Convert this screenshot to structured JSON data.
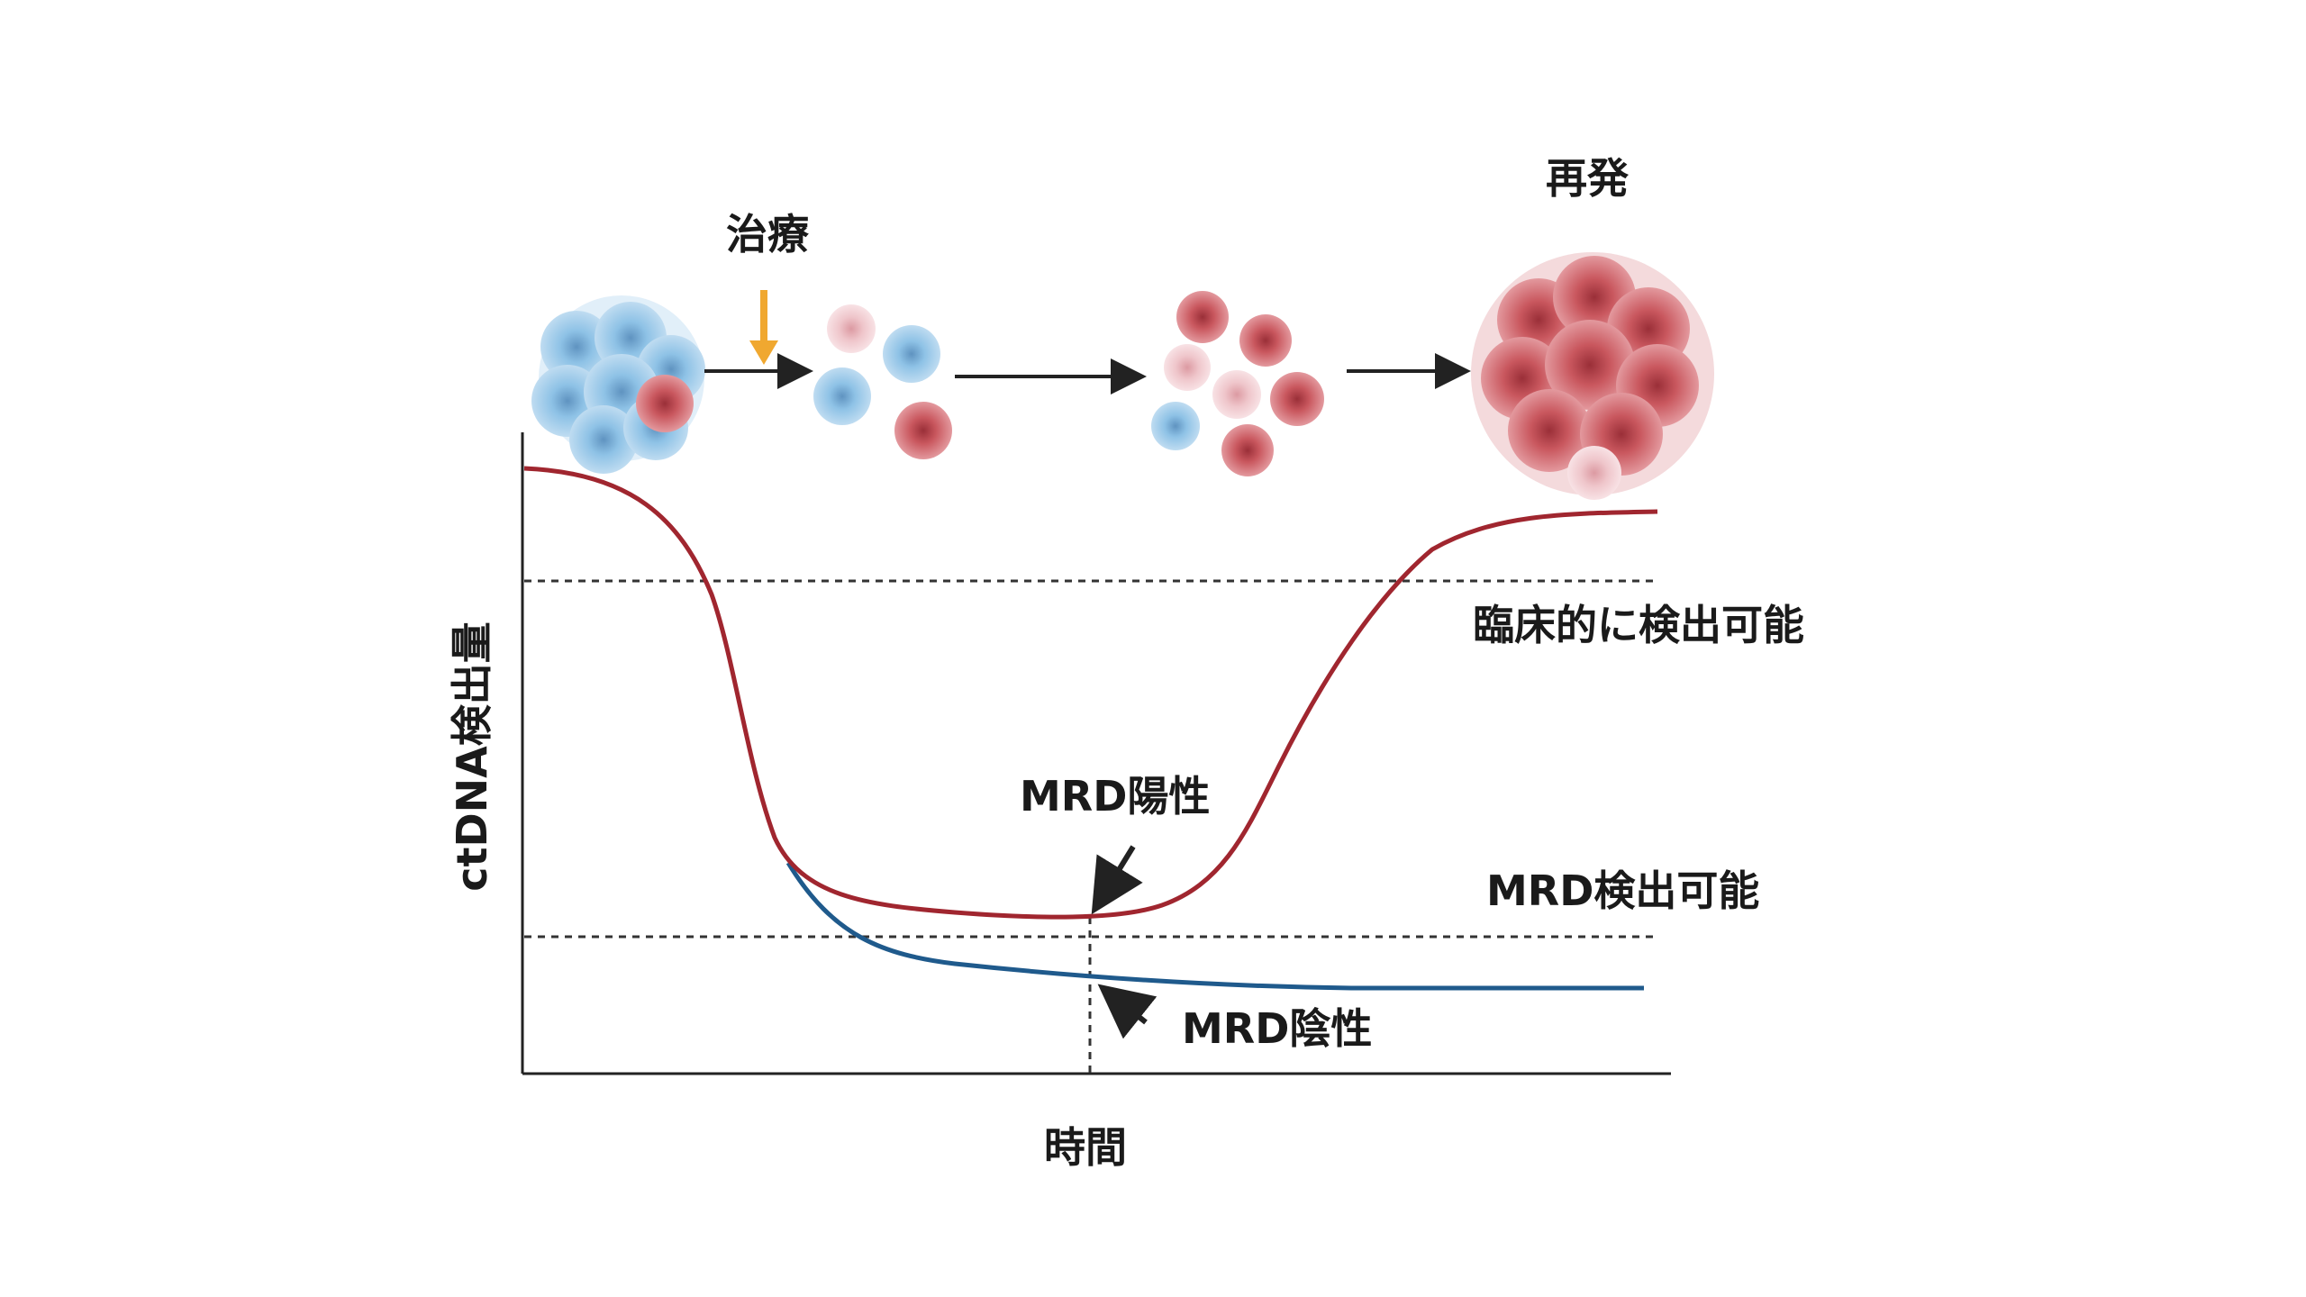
{
  "labels": {
    "treatment": "治療",
    "relapse": "再発",
    "y_axis": "ctDNA検出量",
    "x_axis": "時間",
    "clinical_threshold": "臨床的に検出可能",
    "mrd_threshold": "MRD検出可能",
    "mrd_positive": "MRD陽性",
    "mrd_negative": "MRD陰性"
  },
  "colors": {
    "positive_curve": "#a0262f",
    "negative_curve": "#1f5a8c",
    "treatment_arrow": "#f0a830",
    "blue_cell": "#8ec2e6",
    "red_cell": "#c9575e",
    "pink_cell": "#efc6cb",
    "axis": "#222222"
  },
  "icons": [
    "tumor-cluster-icon",
    "treatment-arrow-icon",
    "cell-icon",
    "process-arrow-icon",
    "relapse-tumor-icon"
  ]
}
